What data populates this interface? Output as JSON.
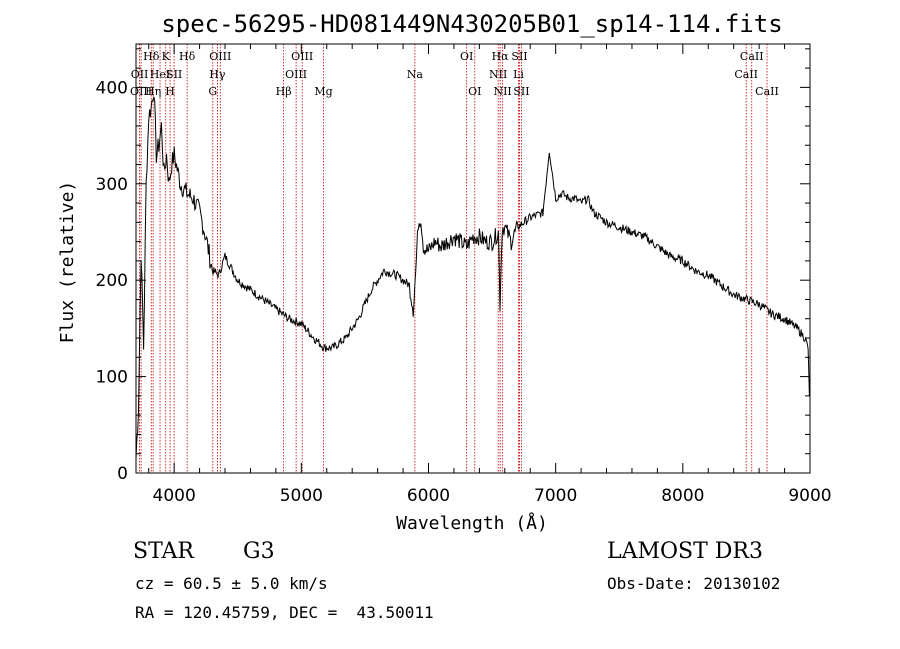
{
  "chart_data": {
    "type": "line",
    "title": "spec-56295-HD081449N430205B01_sp14-114.fits",
    "xlabel": "Wavelength (Å)",
    "ylabel": "Flux (relative)",
    "xlim": [
      3700,
      9000
    ],
    "ylim": [
      0,
      445
    ],
    "xticks": [
      "4000",
      "5000",
      "6000",
      "7000",
      "8000",
      "9000"
    ],
    "yticks": [
      "0",
      "100",
      "200",
      "300",
      "400"
    ],
    "grid": false,
    "series": [
      {
        "x": [
          3700,
          3720,
          3740,
          3760,
          3780,
          3800,
          3820,
          3840,
          3860,
          3880,
          3900,
          3920,
          3940,
          3960,
          3980,
          4000,
          4050,
          4100,
          4150,
          4200,
          4250,
          4300,
          4350,
          4400,
          4500,
          4600,
          4700,
          4800,
          4900,
          5000,
          5100,
          5180,
          5250,
          5350,
          5450,
          5550,
          5650,
          5750,
          5850,
          5880,
          5900,
          5920,
          5940,
          5960,
          6000,
          6050,
          6100,
          6200,
          6300,
          6350,
          6400,
          6450,
          6500,
          6550,
          6562,
          6580,
          6600,
          6650,
          6700,
          6800,
          6900,
          6950,
          7000,
          7050,
          7100,
          7150,
          7200,
          7250,
          7300,
          7350,
          7400,
          7500,
          7600,
          7700,
          7800,
          7900,
          8000,
          8100,
          8200,
          8300,
          8400,
          8500,
          8600,
          8700,
          8800,
          8900,
          8960,
          8985,
          8995
        ],
        "values": [
          15,
          70,
          230,
          130,
          300,
          370,
          380,
          400,
          330,
          340,
          360,
          310,
          330,
          300,
          320,
          330,
          300,
          290,
          285,
          270,
          245,
          210,
          205,
          225,
          200,
          190,
          180,
          170,
          160,
          155,
          140,
          130,
          130,
          140,
          160,
          190,
          210,
          205,
          195,
          170,
          210,
          260,
          265,
          235,
          230,
          240,
          235,
          245,
          235,
          245,
          245,
          240,
          240,
          250,
          175,
          255,
          255,
          240,
          255,
          265,
          270,
          335,
          285,
          290,
          285,
          285,
          280,
          285,
          270,
          265,
          260,
          255,
          250,
          245,
          235,
          225,
          220,
          210,
          205,
          195,
          185,
          180,
          175,
          165,
          160,
          150,
          140,
          130,
          80
        ]
      }
    ],
    "annotations": [
      {
        "label": "Hδ",
        "x": 3820,
        "row": 1
      },
      {
        "label": "OII",
        "x": 3728,
        "row": 2
      },
      {
        "label": "OIII",
        "x": 3740,
        "row": 3
      },
      {
        "label": "K",
        "x": 3934,
        "row": 1
      },
      {
        "label": "HeI",
        "x": 3889,
        "row": 2
      },
      {
        "label": "Hη",
        "x": 3835,
        "row": 3
      },
      {
        "label": "SII",
        "x": 4000,
        "row": 2
      },
      {
        "label": "H",
        "x": 3968,
        "row": 3
      },
      {
        "label": "Hδ",
        "x": 4102,
        "row": 1
      },
      {
        "label": "OIII",
        "x": 4363,
        "row": 1
      },
      {
        "label": "Hγ",
        "x": 4340,
        "row": 2
      },
      {
        "label": "G",
        "x": 4304,
        "row": 3
      },
      {
        "label": "OIII",
        "x": 5007,
        "row": 1
      },
      {
        "label": "OIII",
        "x": 4959,
        "row": 2
      },
      {
        "label": "Hβ",
        "x": 4861,
        "row": 3
      },
      {
        "label": "Mg",
        "x": 5175,
        "row": 3
      },
      {
        "label": "Na",
        "x": 5893,
        "row": 2
      },
      {
        "label": "OI",
        "x": 6300,
        "row": 1
      },
      {
        "label": "OI",
        "x": 6364,
        "row": 3
      },
      {
        "label": "Hα",
        "x": 6563,
        "row": 1
      },
      {
        "label": "SII",
        "x": 6716,
        "row": 1
      },
      {
        "label": "NII",
        "x": 6548,
        "row": 2
      },
      {
        "label": "Li",
        "x": 6708,
        "row": 2
      },
      {
        "label": "NII",
        "x": 6583,
        "row": 3
      },
      {
        "label": "SII",
        "x": 6731,
        "row": 3
      },
      {
        "label": "CaII",
        "x": 8542,
        "row": 1
      },
      {
        "label": "CaII",
        "x": 8498,
        "row": 2
      },
      {
        "label": "CaII",
        "x": 8662,
        "row": 3
      }
    ],
    "line_color": "#000000",
    "marker_line_color": "#cc0000"
  },
  "info": {
    "object_type": "STAR",
    "subclass": "G3",
    "survey": "LAMOST DR3",
    "redshift": "cz = 60.5 ± 5.0 km/s",
    "obs_date": "Obs-Date: 20130102",
    "coords": "RA = 120.45759, DEC =  43.50011"
  }
}
